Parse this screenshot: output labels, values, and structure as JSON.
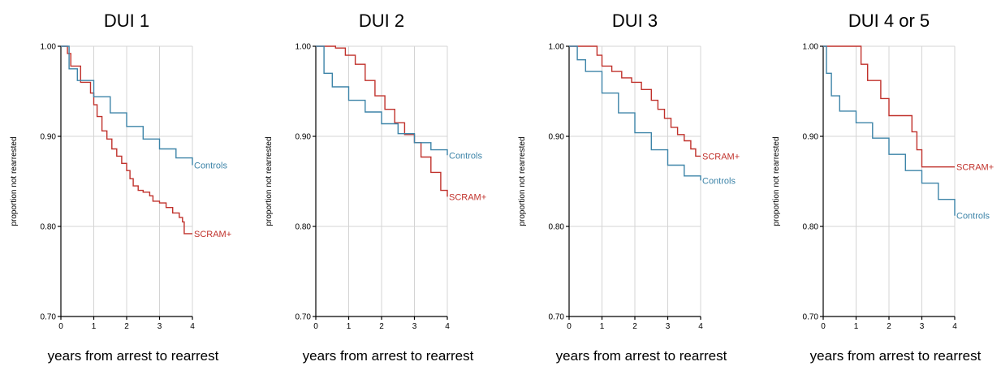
{
  "chart_data": [
    {
      "type": "line",
      "title": "DUI 1",
      "xlabel": "years from arrest to rearrest",
      "ylabel": "proportion not rearrested",
      "xlim": [
        0,
        4
      ],
      "ylim": [
        0.7,
        1.0
      ],
      "xticks": [
        "0",
        "1",
        "2",
        "3",
        "4"
      ],
      "yticks": [
        "0.70",
        "0.80",
        "0.90",
        "1.00"
      ],
      "grid": true,
      "series": [
        {
          "name": "SCRAM+",
          "color": "#c0312b",
          "x": [
            0,
            0.2,
            0.3,
            0.6,
            0.9,
            1.0,
            1.1,
            1.25,
            1.4,
            1.55,
            1.7,
            1.85,
            2.0,
            2.1,
            2.2,
            2.35,
            2.5,
            2.7,
            2.8,
            3.0,
            3.2,
            3.4,
            3.6,
            3.7,
            3.75,
            4.0
          ],
          "y": [
            1.0,
            0.992,
            0.978,
            0.96,
            0.948,
            0.935,
            0.922,
            0.906,
            0.897,
            0.886,
            0.878,
            0.87,
            0.862,
            0.853,
            0.845,
            0.84,
            0.838,
            0.834,
            0.828,
            0.826,
            0.821,
            0.815,
            0.81,
            0.805,
            0.792,
            0.792
          ]
        },
        {
          "name": "Controls",
          "color": "#3d84a8",
          "x": [
            0,
            0.25,
            0.5,
            1.0,
            1.5,
            2.0,
            2.5,
            3.0,
            3.5,
            4.0
          ],
          "y": [
            1.0,
            0.975,
            0.962,
            0.944,
            0.926,
            0.911,
            0.897,
            0.886,
            0.876,
            0.868
          ]
        }
      ]
    },
    {
      "type": "line",
      "title": "DUI 2",
      "xlabel": "years from arrest to rearrest",
      "ylabel": "proportion not rearrested",
      "xlim": [
        0,
        4
      ],
      "ylim": [
        0.7,
        1.0
      ],
      "xticks": [
        "0",
        "1",
        "2",
        "3",
        "4"
      ],
      "yticks": [
        "0.70",
        "0.80",
        "0.90",
        "1.00"
      ],
      "grid": true,
      "series": [
        {
          "name": "SCRAM+",
          "color": "#c0312b",
          "x": [
            0,
            0.3,
            0.6,
            0.9,
            1.2,
            1.5,
            1.8,
            2.1,
            2.4,
            2.7,
            3.0,
            3.2,
            3.5,
            3.8,
            4.0
          ],
          "y": [
            1.0,
            1.0,
            0.998,
            0.99,
            0.98,
            0.962,
            0.945,
            0.93,
            0.915,
            0.902,
            0.893,
            0.877,
            0.86,
            0.84,
            0.833
          ]
        },
        {
          "name": "Controls",
          "color": "#3d84a8",
          "x": [
            0,
            0.25,
            0.5,
            1.0,
            1.5,
            2.0,
            2.5,
            3.0,
            3.5,
            4.0
          ],
          "y": [
            1.0,
            0.97,
            0.955,
            0.94,
            0.927,
            0.914,
            0.903,
            0.893,
            0.885,
            0.879
          ]
        }
      ]
    },
    {
      "type": "line",
      "title": "DUI 3",
      "xlabel": "years from arrest to rearrest",
      "ylabel": "proportion not rearrested",
      "xlim": [
        0,
        4
      ],
      "ylim": [
        0.7,
        1.0
      ],
      "xticks": [
        "0",
        "1",
        "2",
        "3",
        "4"
      ],
      "yticks": [
        "0.70",
        "0.80",
        "0.90",
        "1.00"
      ],
      "grid": true,
      "series": [
        {
          "name": "SCRAM+",
          "color": "#c0312b",
          "x": [
            0,
            0.6,
            0.85,
            1.0,
            1.3,
            1.6,
            1.9,
            2.2,
            2.5,
            2.7,
            2.9,
            3.1,
            3.3,
            3.5,
            3.7,
            3.85,
            4.0
          ],
          "y": [
            1.0,
            1.0,
            0.99,
            0.978,
            0.972,
            0.965,
            0.96,
            0.952,
            0.94,
            0.93,
            0.92,
            0.91,
            0.902,
            0.895,
            0.886,
            0.878,
            0.878
          ]
        },
        {
          "name": "Controls",
          "color": "#3d84a8",
          "x": [
            0,
            0.25,
            0.5,
            1.0,
            1.5,
            2.0,
            2.5,
            3.0,
            3.5,
            4.0
          ],
          "y": [
            1.0,
            0.985,
            0.972,
            0.948,
            0.926,
            0.904,
            0.885,
            0.868,
            0.856,
            0.851
          ]
        }
      ]
    },
    {
      "type": "line",
      "title": "DUI 4 or 5",
      "xlabel": "years from arrest to rearrest",
      "ylabel": "proportion not rearrested",
      "xlim": [
        0,
        4
      ],
      "ylim": [
        0.7,
        1.0
      ],
      "xticks": [
        "0",
        "1",
        "2",
        "3",
        "4"
      ],
      "yticks": [
        "0.70",
        "0.80",
        "0.90",
        "1.00"
      ],
      "grid": true,
      "series": [
        {
          "name": "SCRAM+",
          "color": "#c0312b",
          "x": [
            0,
            1.0,
            1.15,
            1.35,
            1.75,
            2.0,
            2.7,
            2.85,
            3.0,
            4.0
          ],
          "y": [
            1.0,
            1.0,
            0.98,
            0.962,
            0.942,
            0.923,
            0.905,
            0.885,
            0.866,
            0.866
          ]
        },
        {
          "name": "Controls",
          "color": "#3d84a8",
          "x": [
            0,
            0.1,
            0.25,
            0.5,
            1.0,
            1.5,
            2.0,
            2.5,
            3.0,
            3.5,
            4.0
          ],
          "y": [
            1.0,
            0.97,
            0.945,
            0.928,
            0.915,
            0.898,
            0.88,
            0.862,
            0.848,
            0.83,
            0.812
          ]
        }
      ]
    }
  ]
}
